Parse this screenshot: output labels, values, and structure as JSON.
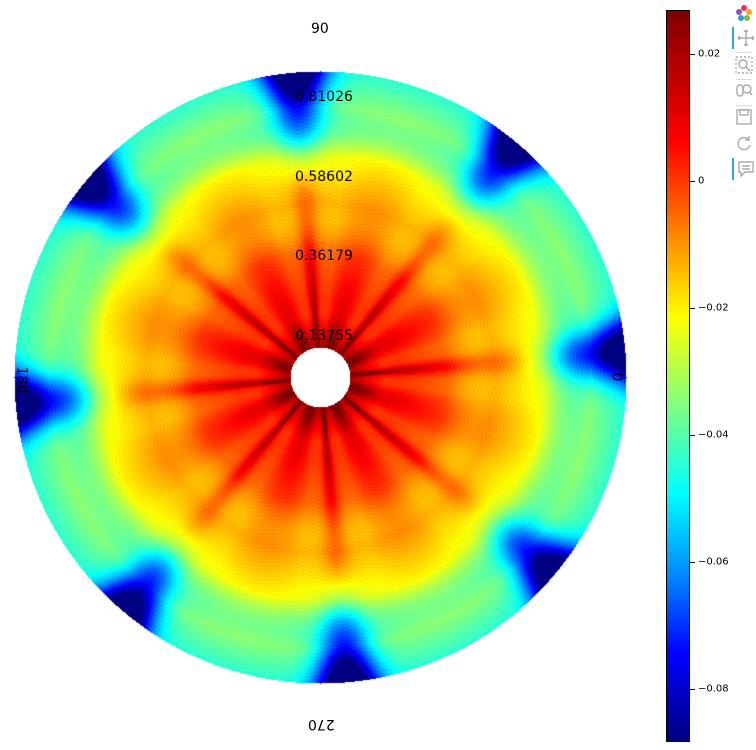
{
  "chart_data": {
    "type": "heatmap",
    "subtype": "polar",
    "colormap": "jet",
    "angle_tick_labels": [
      "0",
      "90",
      "180",
      "270"
    ],
    "radial_tick_labels": [
      "0.13755",
      "0.36179",
      "0.58602",
      "0.81026"
    ],
    "radial_ticks": [
      0.13755,
      0.36179,
      0.58602,
      0.81026
    ],
    "r_range": [
      0.0286,
      0.9224
    ],
    "theta_range": [
      0,
      360
    ],
    "color_range": [
      -0.088,
      0.027
    ],
    "colorbar_ticks": [
      0.02,
      0,
      -0.02,
      -0.04,
      -0.06,
      -0.08
    ],
    "colorbar_tick_labels": [
      "0.02",
      "0",
      "−0.02",
      "−0.04",
      "−0.06",
      "−0.08"
    ],
    "symmetry": 8,
    "ray_angles_deg": [
      5,
      50,
      95,
      140,
      185,
      230,
      275,
      320
    ]
  },
  "toolbar": {
    "tools": [
      {
        "name": "bokeh-logo-icon",
        "title": "Bokeh"
      },
      {
        "name": "pan-icon",
        "title": "Pan"
      },
      {
        "name": "box-zoom-icon",
        "title": "Box Zoom"
      },
      {
        "name": "wheel-zoom-icon",
        "title": "Wheel Zoom"
      },
      {
        "name": "save-icon",
        "title": "Save"
      },
      {
        "name": "reset-icon",
        "title": "Reset"
      },
      {
        "name": "hover-icon",
        "title": "Hover"
      }
    ]
  }
}
